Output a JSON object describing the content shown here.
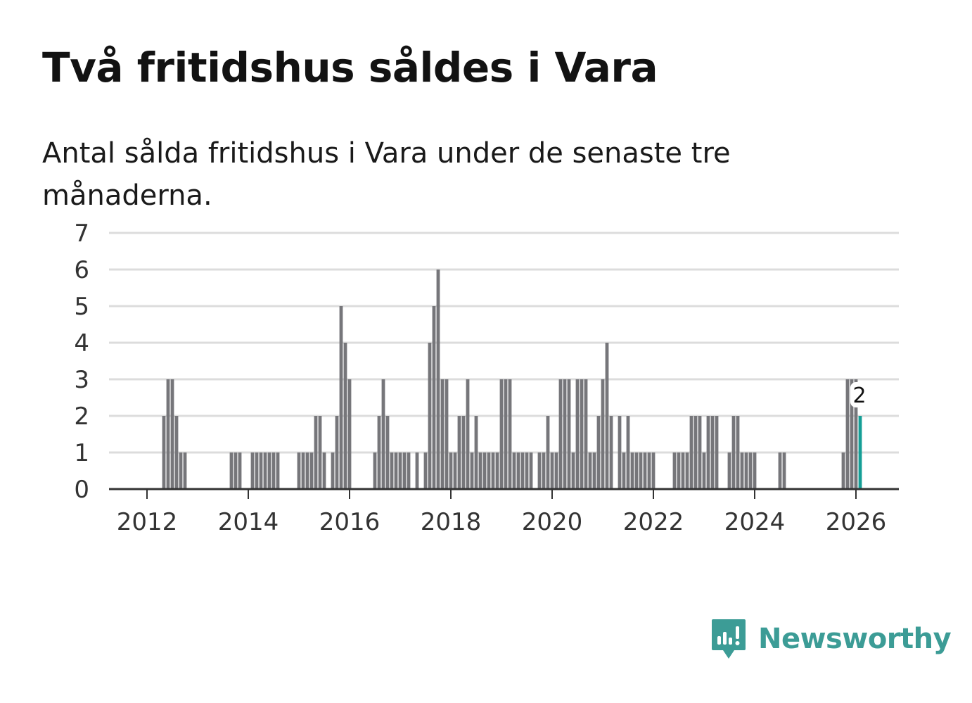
{
  "title": "Två fritidshus såldes i Vara",
  "subtitle": "Antal sålda fritidshus i Vara under de senaste tre månaderna.",
  "brand": {
    "name": "Newsworthy",
    "color": "#3c9c96"
  },
  "colors": {
    "bar": "#76767a",
    "highlight": "#159e96",
    "grid": "#dcdcdc",
    "axis": "#333333"
  },
  "chart_data": {
    "type": "bar",
    "title": "Två fritidshus såldes i Vara",
    "xlabel": "",
    "ylabel": "",
    "ylim": [
      0,
      7
    ],
    "y_ticks": [
      0,
      1,
      2,
      3,
      4,
      5,
      6,
      7
    ],
    "x_ticks": [
      "2012",
      "2014",
      "2016",
      "2018",
      "2020",
      "2022",
      "2024",
      "2026"
    ],
    "x_start": "2011-04",
    "x_end": "2026-02",
    "grid": true,
    "legend": "none",
    "series": [
      {
        "name": "Antal sålda fritidshus",
        "x": [
          "2012-05",
          "2012-06",
          "2012-07",
          "2012-08",
          "2012-09",
          "2012-10",
          "2013-09",
          "2013-10",
          "2013-11",
          "2014-02",
          "2014-03",
          "2014-04",
          "2014-05",
          "2014-06",
          "2014-07",
          "2014-08",
          "2015-01",
          "2015-02",
          "2015-03",
          "2015-04",
          "2015-05",
          "2015-06",
          "2015-07",
          "2015-09",
          "2015-10",
          "2015-11",
          "2015-12",
          "2016-01",
          "2016-07",
          "2016-08",
          "2016-09",
          "2016-10",
          "2016-11",
          "2016-12",
          "2017-01",
          "2017-02",
          "2017-03",
          "2017-05",
          "2017-07",
          "2017-08",
          "2017-09",
          "2017-10",
          "2017-11",
          "2017-12",
          "2018-01",
          "2018-02",
          "2018-03",
          "2018-04",
          "2018-05",
          "2018-06",
          "2018-07",
          "2018-08",
          "2018-09",
          "2018-10",
          "2018-11",
          "2018-12",
          "2019-01",
          "2019-02",
          "2019-03",
          "2019-04",
          "2019-05",
          "2019-06",
          "2019-07",
          "2019-08",
          "2019-10",
          "2019-11",
          "2019-12",
          "2020-01",
          "2020-02",
          "2020-03",
          "2020-04",
          "2020-05",
          "2020-06",
          "2020-07",
          "2020-08",
          "2020-09",
          "2020-10",
          "2020-11",
          "2020-12",
          "2021-01",
          "2021-02",
          "2021-03",
          "2021-05",
          "2021-06",
          "2021-07",
          "2021-08",
          "2021-09",
          "2021-10",
          "2021-11",
          "2021-12",
          "2022-01",
          "2022-06",
          "2022-07",
          "2022-08",
          "2022-09",
          "2022-10",
          "2022-11",
          "2022-12",
          "2023-01",
          "2023-02",
          "2023-03",
          "2023-04",
          "2023-07",
          "2023-08",
          "2023-09",
          "2023-10",
          "2023-11",
          "2023-12",
          "2024-01",
          "2024-07",
          "2024-08",
          "2025-10",
          "2025-11",
          "2025-12",
          "2026-01",
          "2026-02"
        ],
        "values": [
          2,
          3,
          3,
          2,
          1,
          1,
          1,
          1,
          1,
          1,
          1,
          1,
          1,
          1,
          1,
          1,
          1,
          1,
          1,
          1,
          2,
          2,
          1,
          1,
          2,
          5,
          4,
          3,
          1,
          2,
          3,
          2,
          1,
          1,
          1,
          1,
          1,
          1,
          1,
          4,
          5,
          6,
          3,
          3,
          1,
          1,
          2,
          2,
          3,
          1,
          2,
          1,
          1,
          1,
          1,
          1,
          3,
          3,
          3,
          1,
          1,
          1,
          1,
          1,
          1,
          1,
          2,
          1,
          1,
          3,
          3,
          3,
          1,
          3,
          3,
          3,
          1,
          1,
          2,
          3,
          4,
          2,
          2,
          1,
          2,
          1,
          1,
          1,
          1,
          1,
          1,
          1,
          1,
          1,
          1,
          2,
          2,
          2,
          1,
          2,
          2,
          2,
          1,
          2,
          2,
          1,
          1,
          1,
          1,
          1,
          1,
          1,
          3,
          3,
          3,
          2
        ],
        "highlight_last": true,
        "last_value_label": "2"
      }
    ]
  }
}
